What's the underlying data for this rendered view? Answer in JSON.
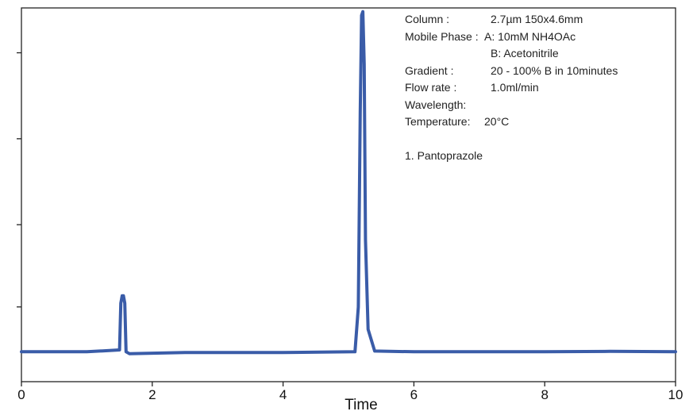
{
  "chart_data": {
    "type": "line",
    "xlabel": "Time",
    "ylabel": "",
    "xlim": [
      0,
      10
    ],
    "ylim": [
      0,
      1
    ],
    "x_ticks": [
      "0",
      "2",
      "4",
      "6",
      "8",
      "10"
    ],
    "y_ticks_labeled": false,
    "grid": false,
    "series": [
      {
        "color": "#3a5ca8",
        "x": [
          0.0,
          1.0,
          1.5,
          1.52,
          1.54,
          1.56,
          1.58,
          1.6,
          1.65,
          2.5,
          4.0,
          5.1,
          5.15,
          5.18,
          5.2,
          5.22,
          5.24,
          5.26,
          5.3,
          5.4,
          6.0,
          8.0,
          9.0,
          10.0
        ],
        "y": [
          0.08,
          0.08,
          0.085,
          0.21,
          0.23,
          0.23,
          0.21,
          0.08,
          0.075,
          0.078,
          0.078,
          0.08,
          0.2,
          0.72,
          0.98,
          0.99,
          0.85,
          0.38,
          0.14,
          0.082,
          0.08,
          0.08,
          0.081,
          0.08
        ]
      }
    ],
    "annotations": {
      "column_label": "Column :",
      "column_value": "2.7µm 150x4.6mm",
      "mobile_phase_label": "Mobile Phase :",
      "mobile_phase_a": "A: 10mM NH4OAc",
      "mobile_phase_b": "B: Acetonitrile",
      "gradient_label": "Gradient :",
      "gradient_value": "20 - 100% B in 10minutes",
      "flow_rate_label": "Flow rate :",
      "flow_rate_value": "1.0ml/min",
      "wavelength_label": "Wavelength:",
      "temperature_label": "Temperature:",
      "temperature_value": "20°C",
      "peak_1": "1. Pantoprazole"
    }
  }
}
